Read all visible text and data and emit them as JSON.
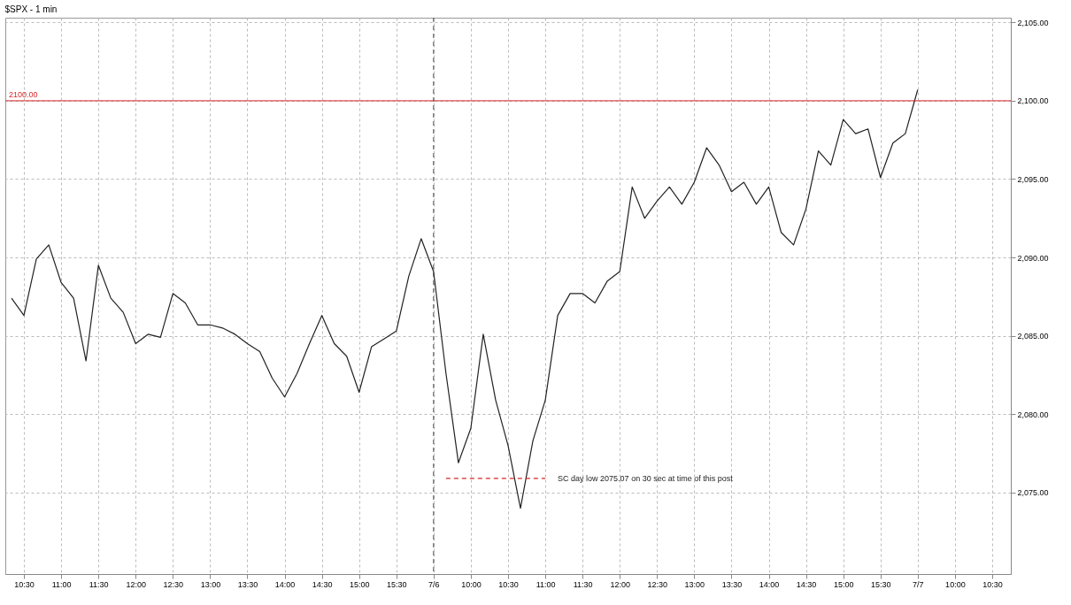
{
  "chart_data": {
    "type": "line",
    "title": "$SPX - 1 min",
    "annotations": [
      "SC day low 2075.07 on 30 sec at time of this post"
    ],
    "categories": [
      null,
      "10:30",
      null,
      null,
      "11:00",
      null,
      null,
      "11:30",
      null,
      null,
      "12:00",
      null,
      null,
      "12:30",
      null,
      null,
      "13:00",
      null,
      null,
      "13:30",
      null,
      null,
      "14:00",
      null,
      null,
      "14:30",
      null,
      null,
      "15:00",
      null,
      null,
      "15:30",
      null,
      null,
      "7/6",
      null,
      null,
      "10:00",
      null,
      null,
      "10:30",
      null,
      null,
      "11:00",
      null,
      null,
      "11:30",
      null,
      null,
      "12:00",
      null,
      null,
      "12:30",
      null,
      null,
      "13:00",
      null,
      null,
      "13:30",
      null,
      null,
      "14:00",
      null,
      null,
      "14:30",
      null,
      null,
      "15:00",
      null,
      null,
      "15:30",
      null,
      null,
      "7/7",
      null,
      null,
      "10:00",
      null,
      null,
      "10:30",
      null
    ],
    "series": [
      {
        "color": "#222222",
        "values": [
          2087.4,
          2086.3,
          2089.9,
          2090.8,
          2088.4,
          2087.4,
          2083.4,
          2089.5,
          2087.4,
          2086.5,
          2084.5,
          2085.1,
          2084.9,
          2087.7,
          2087.1,
          2085.7,
          2085.7,
          2085.5,
          2085.1,
          2084.5,
          2084.0,
          2082.3,
          2081.1,
          2082.6,
          2084.5,
          2086.3,
          2084.5,
          2083.7,
          2081.4,
          2084.3,
          2084.8,
          2085.3,
          2088.8,
          2091.2,
          2089.1,
          2082.6,
          2076.9,
          2079.1,
          2085.1,
          2080.9,
          2078.0,
          2074.0,
          2078.3,
          2080.9,
          2086.3,
          2087.7,
          2087.7,
          2087.1,
          2088.5,
          2089.1,
          2094.5,
          2092.5,
          2093.6,
          2094.5,
          2093.4,
          2094.8,
          2097.0,
          2095.9,
          2094.2,
          2094.8,
          2093.4,
          2094.5,
          2091.6,
          2090.8,
          2093.1,
          2096.8,
          2095.9,
          2098.8,
          2097.9,
          2098.2,
          2095.1,
          2097.3,
          2097.9,
          2100.7,
          null,
          null,
          null,
          null,
          null,
          null,
          null
        ]
      },
      {
        "color": "#d62728",
        "line_style": "dashed",
        "values": [
          null,
          null,
          null,
          null,
          null,
          null,
          null,
          null,
          null,
          null,
          null,
          null,
          null,
          null,
          null,
          null,
          null,
          null,
          null,
          null,
          null,
          null,
          null,
          null,
          null,
          null,
          null,
          null,
          null,
          null,
          null,
          null,
          null,
          null,
          null,
          2075.9,
          2075.9,
          2075.9,
          2075.9,
          2075.9,
          2075.9,
          2075.9,
          2075.9,
          2075.9,
          null,
          null,
          null,
          null,
          null,
          null,
          null,
          null,
          null,
          null,
          null,
          null,
          null,
          null,
          null,
          null,
          null,
          null,
          null,
          null,
          null,
          null,
          null,
          null,
          null,
          null,
          null,
          null,
          null,
          null,
          null,
          null,
          null,
          null,
          null,
          null,
          null
        ]
      }
    ],
    "ref_lines": [
      {
        "axis": "y",
        "value": 2100,
        "label": "2100.00",
        "color": "#d62728",
        "line_style": "solid"
      },
      {
        "axis": "x",
        "value": "7/6",
        "color": "#444444",
        "line_style": "dashed"
      }
    ],
    "ylim": [
      2069.8,
      2105.3
    ],
    "yticks": [
      {
        "value": 2075,
        "label": "2,075.00"
      },
      {
        "value": 2080,
        "label": "2,080.00"
      },
      {
        "value": 2085,
        "label": "2,085.00"
      },
      {
        "value": 2090,
        "label": "2,090.00"
      },
      {
        "value": 2095,
        "label": "2,095.00"
      },
      {
        "value": 2100,
        "label": "2,100.00"
      },
      {
        "value": 2105,
        "label": "2,105.00"
      }
    ],
    "grid": true,
    "marker": "none",
    "line_style": "solid"
  }
}
